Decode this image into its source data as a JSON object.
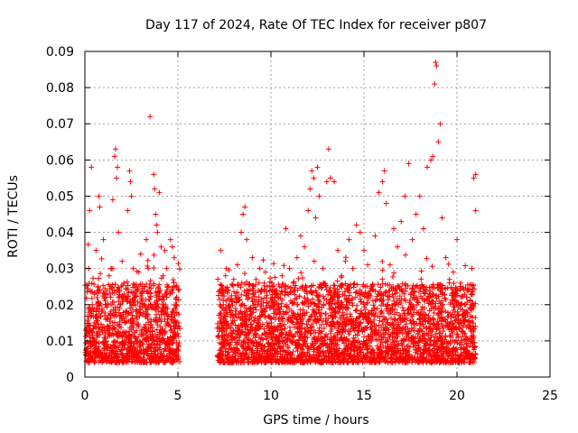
{
  "chart_data": {
    "type": "scatter",
    "title": "Day 117 of 2024, Rate Of TEC Index for receiver p807",
    "xlabel": "GPS time / hours",
    "ylabel": "ROTI / TECUs",
    "xlim": [
      0,
      25
    ],
    "ylim": [
      0,
      0.09
    ],
    "x_ticks": [
      0,
      5,
      10,
      15,
      20,
      25
    ],
    "y_ticks": [
      0,
      0.01,
      0.02,
      0.03,
      0.04,
      0.05,
      0.06,
      0.07,
      0.08,
      0.09
    ],
    "x_tick_labels": [
      "0",
      "5",
      "10",
      "15",
      "20",
      "25"
    ],
    "y_tick_labels": [
      "0",
      "0.01",
      "0.02",
      "0.03",
      "0.04",
      "0.05",
      "0.06",
      "0.07",
      "0.08",
      "0.09"
    ],
    "grid": true,
    "marker": "+",
    "series_color": "#ff0000",
    "points": [
      [
        0.1,
        0.012
      ],
      [
        0.2,
        0.03
      ],
      [
        0.25,
        0.046
      ],
      [
        0.35,
        0.058
      ],
      [
        0.4,
        0.02
      ],
      [
        0.5,
        0.015
      ],
      [
        0.6,
        0.035
      ],
      [
        0.7,
        0.025
      ],
      [
        0.75,
        0.05
      ],
      [
        0.8,
        0.047
      ],
      [
        0.9,
        0.018
      ],
      [
        1.0,
        0.038
      ],
      [
        1.1,
        0.022
      ],
      [
        1.2,
        0.014
      ],
      [
        1.3,
        0.028
      ],
      [
        1.4,
        0.03
      ],
      [
        1.5,
        0.049
      ],
      [
        1.6,
        0.061
      ],
      [
        1.65,
        0.063
      ],
      [
        1.7,
        0.055
      ],
      [
        1.75,
        0.058
      ],
      [
        1.8,
        0.04
      ],
      [
        1.9,
        0.02
      ],
      [
        2.0,
        0.032
      ],
      [
        2.1,
        0.026
      ],
      [
        2.2,
        0.018
      ],
      [
        2.3,
        0.046
      ],
      [
        2.4,
        0.057
      ],
      [
        2.45,
        0.054
      ],
      [
        2.5,
        0.05
      ],
      [
        2.6,
        0.03
      ],
      [
        2.7,
        0.022
      ],
      [
        2.8,
        0.016
      ],
      [
        2.9,
        0.029
      ],
      [
        3.0,
        0.034
      ],
      [
        3.1,
        0.02
      ],
      [
        3.2,
        0.025
      ],
      [
        3.3,
        0.038
      ],
      [
        3.4,
        0.03
      ],
      [
        3.5,
        0.072
      ],
      [
        3.6,
        0.019
      ],
      [
        3.7,
        0.056
      ],
      [
        3.75,
        0.052
      ],
      [
        3.8,
        0.045
      ],
      [
        3.85,
        0.042
      ],
      [
        3.9,
        0.04
      ],
      [
        4.0,
        0.051
      ],
      [
        4.1,
        0.036
      ],
      [
        4.2,
        0.028
      ],
      [
        4.3,
        0.035
      ],
      [
        4.4,
        0.03
      ],
      [
        4.5,
        0.025
      ],
      [
        4.6,
        0.038
      ],
      [
        4.7,
        0.036
      ],
      [
        4.8,
        0.033
      ],
      [
        4.9,
        0.02
      ],
      [
        5.0,
        0.012
      ],
      [
        7.2,
        0.011
      ],
      [
        7.3,
        0.035
      ],
      [
        7.4,
        0.024
      ],
      [
        7.6,
        0.03
      ],
      [
        7.8,
        0.02
      ],
      [
        8.0,
        0.027
      ],
      [
        8.2,
        0.031
      ],
      [
        8.4,
        0.04
      ],
      [
        8.5,
        0.045
      ],
      [
        8.6,
        0.047
      ],
      [
        8.7,
        0.038
      ],
      [
        8.8,
        0.022
      ],
      [
        9.0,
        0.033
      ],
      [
        9.2,
        0.027
      ],
      [
        9.4,
        0.03
      ],
      [
        9.6,
        0.018
      ],
      [
        9.8,
        0.025
      ],
      [
        10.0,
        0.024
      ],
      [
        10.2,
        0.022
      ],
      [
        10.4,
        0.02
      ],
      [
        10.6,
        0.028
      ],
      [
        10.8,
        0.041
      ],
      [
        11.0,
        0.03
      ],
      [
        11.2,
        0.026
      ],
      [
        11.4,
        0.033
      ],
      [
        11.6,
        0.039
      ],
      [
        11.8,
        0.036
      ],
      [
        12.0,
        0.046
      ],
      [
        12.1,
        0.052
      ],
      [
        12.2,
        0.057
      ],
      [
        12.3,
        0.055
      ],
      [
        12.4,
        0.044
      ],
      [
        12.5,
        0.058
      ],
      [
        12.6,
        0.05
      ],
      [
        12.8,
        0.03
      ],
      [
        13.0,
        0.054
      ],
      [
        13.1,
        0.063
      ],
      [
        13.2,
        0.055
      ],
      [
        13.4,
        0.054
      ],
      [
        13.6,
        0.035
      ],
      [
        13.8,
        0.028
      ],
      [
        14.0,
        0.032
      ],
      [
        14.2,
        0.038
      ],
      [
        14.4,
        0.03
      ],
      [
        14.6,
        0.042
      ],
      [
        14.8,
        0.04
      ],
      [
        15.0,
        0.035
      ],
      [
        15.2,
        0.031
      ],
      [
        15.4,
        0.025
      ],
      [
        15.6,
        0.039
      ],
      [
        15.8,
        0.051
      ],
      [
        16.0,
        0.054
      ],
      [
        16.1,
        0.057
      ],
      [
        16.2,
        0.048
      ],
      [
        16.4,
        0.031
      ],
      [
        16.6,
        0.041
      ],
      [
        16.8,
        0.036
      ],
      [
        17.0,
        0.043
      ],
      [
        17.2,
        0.05
      ],
      [
        17.4,
        0.059
      ],
      [
        17.6,
        0.038
      ],
      [
        17.8,
        0.045
      ],
      [
        18.0,
        0.05
      ],
      [
        18.2,
        0.041
      ],
      [
        18.4,
        0.058
      ],
      [
        18.6,
        0.06
      ],
      [
        18.7,
        0.061
      ],
      [
        18.8,
        0.081
      ],
      [
        18.85,
        0.087
      ],
      [
        18.9,
        0.086
      ],
      [
        19.0,
        0.065
      ],
      [
        19.1,
        0.07
      ],
      [
        19.2,
        0.044
      ],
      [
        19.4,
        0.033
      ],
      [
        19.6,
        0.027
      ],
      [
        19.8,
        0.029
      ],
      [
        20.0,
        0.038
      ],
      [
        20.2,
        0.026
      ],
      [
        20.4,
        0.018
      ],
      [
        20.6,
        0.024
      ],
      [
        20.8,
        0.03
      ],
      [
        20.9,
        0.055
      ],
      [
        21.0,
        0.046
      ],
      [
        21.0,
        0.056
      ]
    ]
  }
}
